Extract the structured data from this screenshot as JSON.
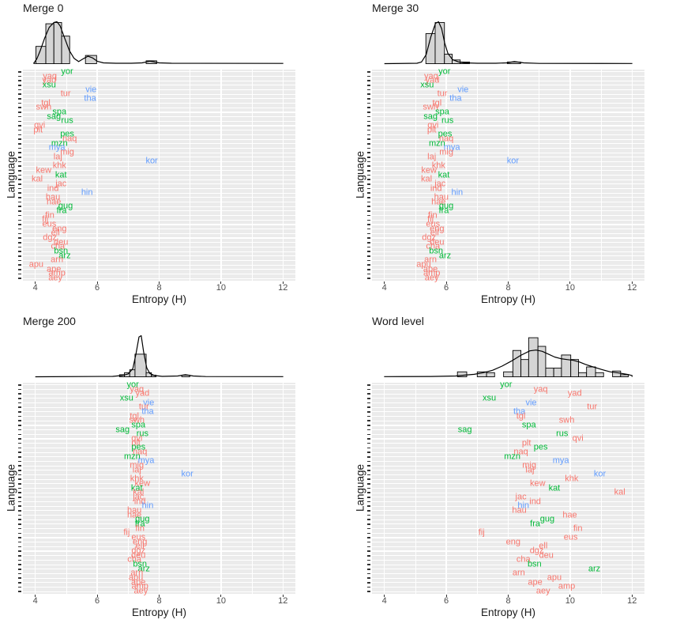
{
  "figure": {
    "y_axis_label": "Language",
    "x_axis_label": "Entropy (H)"
  },
  "axis": {
    "x_label": "Entropy (H)",
    "y_label": "Language",
    "x_ticks": [
      4,
      6,
      8,
      10,
      12
    ],
    "x_minor_ticks": [
      5,
      7,
      9,
      11
    ],
    "x_range": [
      3.6,
      12.4
    ]
  },
  "palette": {
    "red": "#F8766D",
    "green": "#00BA38",
    "blue": "#619CFF",
    "panel_bg": "#EBEBEB",
    "gridline": "#FFFFFF",
    "hist_fill": "#D5D5D5",
    "hist_stroke": "#000000",
    "axis_text": "#4D4D4D",
    "tick_mark": "#333333"
  },
  "chart_data": {
    "type": "scatter",
    "title": "",
    "xlabel": "Entropy (H)",
    "ylabel": "Language",
    "xlim": [
      3.6,
      12.4
    ],
    "grid": "on",
    "languages": [
      "yor",
      "yaq",
      "yad",
      "xsu",
      "vie",
      "tur",
      "tha",
      "tgl",
      "swh",
      "spa",
      "sag",
      "rus",
      "qvi",
      "plt",
      "pes",
      "naq",
      "mzn",
      "mya",
      "mig",
      "laj",
      "kor",
      "khk",
      "kew",
      "kat",
      "kal",
      "jac",
      "ind",
      "hin",
      "hau",
      "hae",
      "gug",
      "fra",
      "fin",
      "fij",
      "eus",
      "eng",
      "ell",
      "dgz",
      "deu",
      "cha",
      "bsn",
      "arz",
      "arn",
      "apu",
      "ape",
      "amp",
      "aey"
    ],
    "language_groups": [
      "green",
      "red",
      "red",
      "green",
      "blue",
      "red",
      "blue",
      "red",
      "red",
      "green",
      "green",
      "green",
      "red",
      "red",
      "green",
      "red",
      "green",
      "blue",
      "red",
      "red",
      "blue",
      "red",
      "red",
      "green",
      "red",
      "red",
      "red",
      "blue",
      "red",
      "red",
      "green",
      "green",
      "red",
      "red",
      "red",
      "red",
      "red",
      "red",
      "red",
      "red",
      "green",
      "green",
      "red",
      "red",
      "red",
      "red",
      "red"
    ],
    "panels": [
      {
        "title": "Merge 0",
        "values": [
          5.03,
          4.47,
          4.45,
          4.45,
          5.8,
          4.98,
          5.77,
          4.34,
          4.27,
          4.78,
          4.6,
          5.03,
          4.14,
          4.09,
          5.03,
          5.11,
          4.78,
          4.7,
          5.03,
          4.73,
          7.76,
          4.78,
          4.27,
          4.83,
          4.06,
          4.83,
          4.57,
          5.67,
          4.57,
          4.6,
          4.98,
          4.85,
          4.47,
          4.32,
          4.45,
          4.78,
          4.65,
          4.47,
          4.83,
          4.73,
          4.83,
          4.95,
          4.7,
          4.03,
          4.6,
          4.7,
          4.65
        ],
        "histogram": [
          [
            4.02,
            4.34,
            0.42
          ],
          [
            4.34,
            4.6,
            0.97
          ],
          [
            4.6,
            4.85,
            1.0
          ],
          [
            4.85,
            5.11,
            0.67
          ],
          [
            5.62,
            5.98,
            0.2
          ],
          [
            7.58,
            7.92,
            0.07
          ]
        ],
        "density": [
          [
            3.95,
            0.01
          ],
          [
            4.05,
            0.12
          ],
          [
            4.15,
            0.3
          ],
          [
            4.3,
            0.62
          ],
          [
            4.45,
            0.88
          ],
          [
            4.6,
            1.0
          ],
          [
            4.7,
            1.02
          ],
          [
            4.8,
            0.92
          ],
          [
            4.95,
            0.62
          ],
          [
            5.1,
            0.32
          ],
          [
            5.25,
            0.13
          ],
          [
            5.4,
            0.05
          ],
          [
            5.55,
            0.12
          ],
          [
            5.7,
            0.18
          ],
          [
            5.85,
            0.14
          ],
          [
            6.0,
            0.06
          ],
          [
            6.2,
            0.02
          ],
          [
            6.6,
            0.01
          ],
          [
            7.1,
            0.01
          ],
          [
            7.45,
            0.02
          ],
          [
            7.7,
            0.06
          ],
          [
            8.0,
            0.02
          ],
          [
            8.4,
            0.01
          ],
          [
            12.0,
            0.005
          ]
        ]
      },
      {
        "title": "Merge 30",
        "values": [
          5.94,
          5.51,
          5.55,
          5.38,
          6.54,
          5.87,
          6.3,
          5.7,
          5.49,
          5.87,
          5.49,
          6.04,
          5.57,
          5.53,
          5.96,
          6.0,
          5.7,
          6.18,
          6.0,
          5.53,
          8.15,
          5.75,
          5.44,
          5.92,
          5.36,
          5.8,
          5.67,
          6.35,
          5.84,
          5.75,
          6.0,
          5.92,
          5.56,
          5.49,
          5.57,
          5.7,
          5.62,
          5.44,
          5.7,
          5.57,
          5.67,
          5.96,
          5.49,
          5.27,
          5.49,
          5.53,
          5.53
        ],
        "histogram": [
          [
            5.34,
            5.64,
            0.73
          ],
          [
            5.64,
            5.94,
            1.0
          ],
          [
            5.94,
            6.19,
            0.23
          ],
          [
            6.19,
            6.45,
            0.09
          ],
          [
            6.45,
            6.75,
            0.04
          ],
          [
            7.97,
            8.4,
            0.04
          ]
        ],
        "density": [
          [
            5.05,
            0.01
          ],
          [
            5.2,
            0.04
          ],
          [
            5.35,
            0.22
          ],
          [
            5.5,
            0.65
          ],
          [
            5.65,
            0.98
          ],
          [
            5.75,
            1.02
          ],
          [
            5.85,
            0.85
          ],
          [
            5.95,
            0.5
          ],
          [
            6.05,
            0.25
          ],
          [
            6.2,
            0.1
          ],
          [
            6.4,
            0.04
          ],
          [
            6.6,
            0.02
          ],
          [
            7.0,
            0.01
          ],
          [
            7.6,
            0.01
          ],
          [
            7.95,
            0.02
          ],
          [
            8.2,
            0.05
          ],
          [
            8.5,
            0.02
          ],
          [
            9.0,
            0.006
          ],
          [
            12.0,
            0.004
          ]
        ]
      },
      {
        "title": "Merge 200",
        "values": [
          7.15,
          7.28,
          7.46,
          6.95,
          7.66,
          7.51,
          7.63,
          7.2,
          7.28,
          7.33,
          6.82,
          7.46,
          7.28,
          7.25,
          7.33,
          7.38,
          7.13,
          7.58,
          7.28,
          7.28,
          8.91,
          7.28,
          7.46,
          7.28,
          7.33,
          7.33,
          7.38,
          7.63,
          7.2,
          7.2,
          7.46,
          7.38,
          7.38,
          6.95,
          7.33,
          7.38,
          7.38,
          7.33,
          7.33,
          7.2,
          7.38,
          7.51,
          7.28,
          7.25,
          7.33,
          7.38,
          7.41
        ],
        "histogram": [
          [
            6.72,
            6.88,
            0.05
          ],
          [
            6.88,
            7.05,
            0.1
          ],
          [
            7.05,
            7.22,
            0.17
          ],
          [
            7.22,
            7.58,
            0.55
          ],
          [
            7.58,
            7.75,
            0.1
          ],
          [
            7.75,
            7.9,
            0.04
          ],
          [
            8.73,
            8.99,
            0.04
          ]
        ],
        "density": [
          [
            6.5,
            0.01
          ],
          [
            6.8,
            0.03
          ],
          [
            7.0,
            0.07
          ],
          [
            7.15,
            0.2
          ],
          [
            7.25,
            0.55
          ],
          [
            7.35,
            0.97
          ],
          [
            7.42,
            1.0
          ],
          [
            7.5,
            0.6
          ],
          [
            7.6,
            0.22
          ],
          [
            7.7,
            0.08
          ],
          [
            7.85,
            0.03
          ],
          [
            8.1,
            0.01
          ],
          [
            8.6,
            0.02
          ],
          [
            8.85,
            0.05
          ],
          [
            9.1,
            0.02
          ],
          [
            9.5,
            0.006
          ],
          [
            12.0,
            0.004
          ]
        ]
      },
      {
        "title": "Word level",
        "values": [
          7.93,
          9.05,
          10.15,
          7.39,
          8.74,
          10.71,
          8.36,
          8.41,
          9.89,
          8.67,
          6.6,
          9.74,
          10.25,
          8.59,
          9.05,
          8.41,
          8.13,
          9.7,
          8.68,
          8.7,
          10.96,
          10.05,
          8.95,
          9.49,
          11.6,
          8.41,
          8.87,
          8.49,
          8.36,
          9.99,
          9.26,
          8.87,
          10.25,
          7.14,
          10.02,
          8.16,
          9.13,
          8.92,
          9.23,
          8.49,
          8.85,
          10.78,
          8.34,
          9.49,
          8.87,
          9.89,
          9.13
        ],
        "histogram": [
          [
            6.36,
            6.66,
            0.12
          ],
          [
            7.0,
            7.3,
            0.12
          ],
          [
            7.3,
            7.56,
            0.1
          ],
          [
            7.85,
            8.15,
            0.12
          ],
          [
            8.15,
            8.41,
            0.64
          ],
          [
            8.41,
            8.66,
            0.42
          ],
          [
            8.66,
            8.96,
            0.95
          ],
          [
            8.96,
            9.21,
            0.74
          ],
          [
            9.21,
            9.47,
            0.21
          ],
          [
            9.47,
            9.72,
            0.21
          ],
          [
            9.72,
            10.02,
            0.53
          ],
          [
            10.02,
            10.27,
            0.42
          ],
          [
            10.27,
            10.53,
            0.1
          ],
          [
            10.53,
            10.82,
            0.24
          ],
          [
            10.82,
            11.08,
            0.1
          ],
          [
            11.37,
            11.63,
            0.14
          ],
          [
            11.63,
            11.88,
            0.05
          ]
        ],
        "density": [
          [
            4.0,
            0.004
          ],
          [
            5.5,
            0.008
          ],
          [
            6.3,
            0.02
          ],
          [
            6.6,
            0.04
          ],
          [
            6.9,
            0.06
          ],
          [
            7.2,
            0.1
          ],
          [
            7.5,
            0.16
          ],
          [
            7.8,
            0.26
          ],
          [
            8.1,
            0.38
          ],
          [
            8.4,
            0.52
          ],
          [
            8.7,
            0.63
          ],
          [
            8.9,
            0.65
          ],
          [
            9.1,
            0.62
          ],
          [
            9.3,
            0.55
          ],
          [
            9.5,
            0.48
          ],
          [
            9.7,
            0.44
          ],
          [
            9.9,
            0.42
          ],
          [
            10.1,
            0.4
          ],
          [
            10.3,
            0.36
          ],
          [
            10.5,
            0.3
          ],
          [
            10.7,
            0.25
          ],
          [
            11.0,
            0.18
          ],
          [
            11.3,
            0.12
          ],
          [
            11.6,
            0.09
          ],
          [
            11.9,
            0.05
          ],
          [
            12.1,
            0.03
          ]
        ]
      }
    ]
  }
}
